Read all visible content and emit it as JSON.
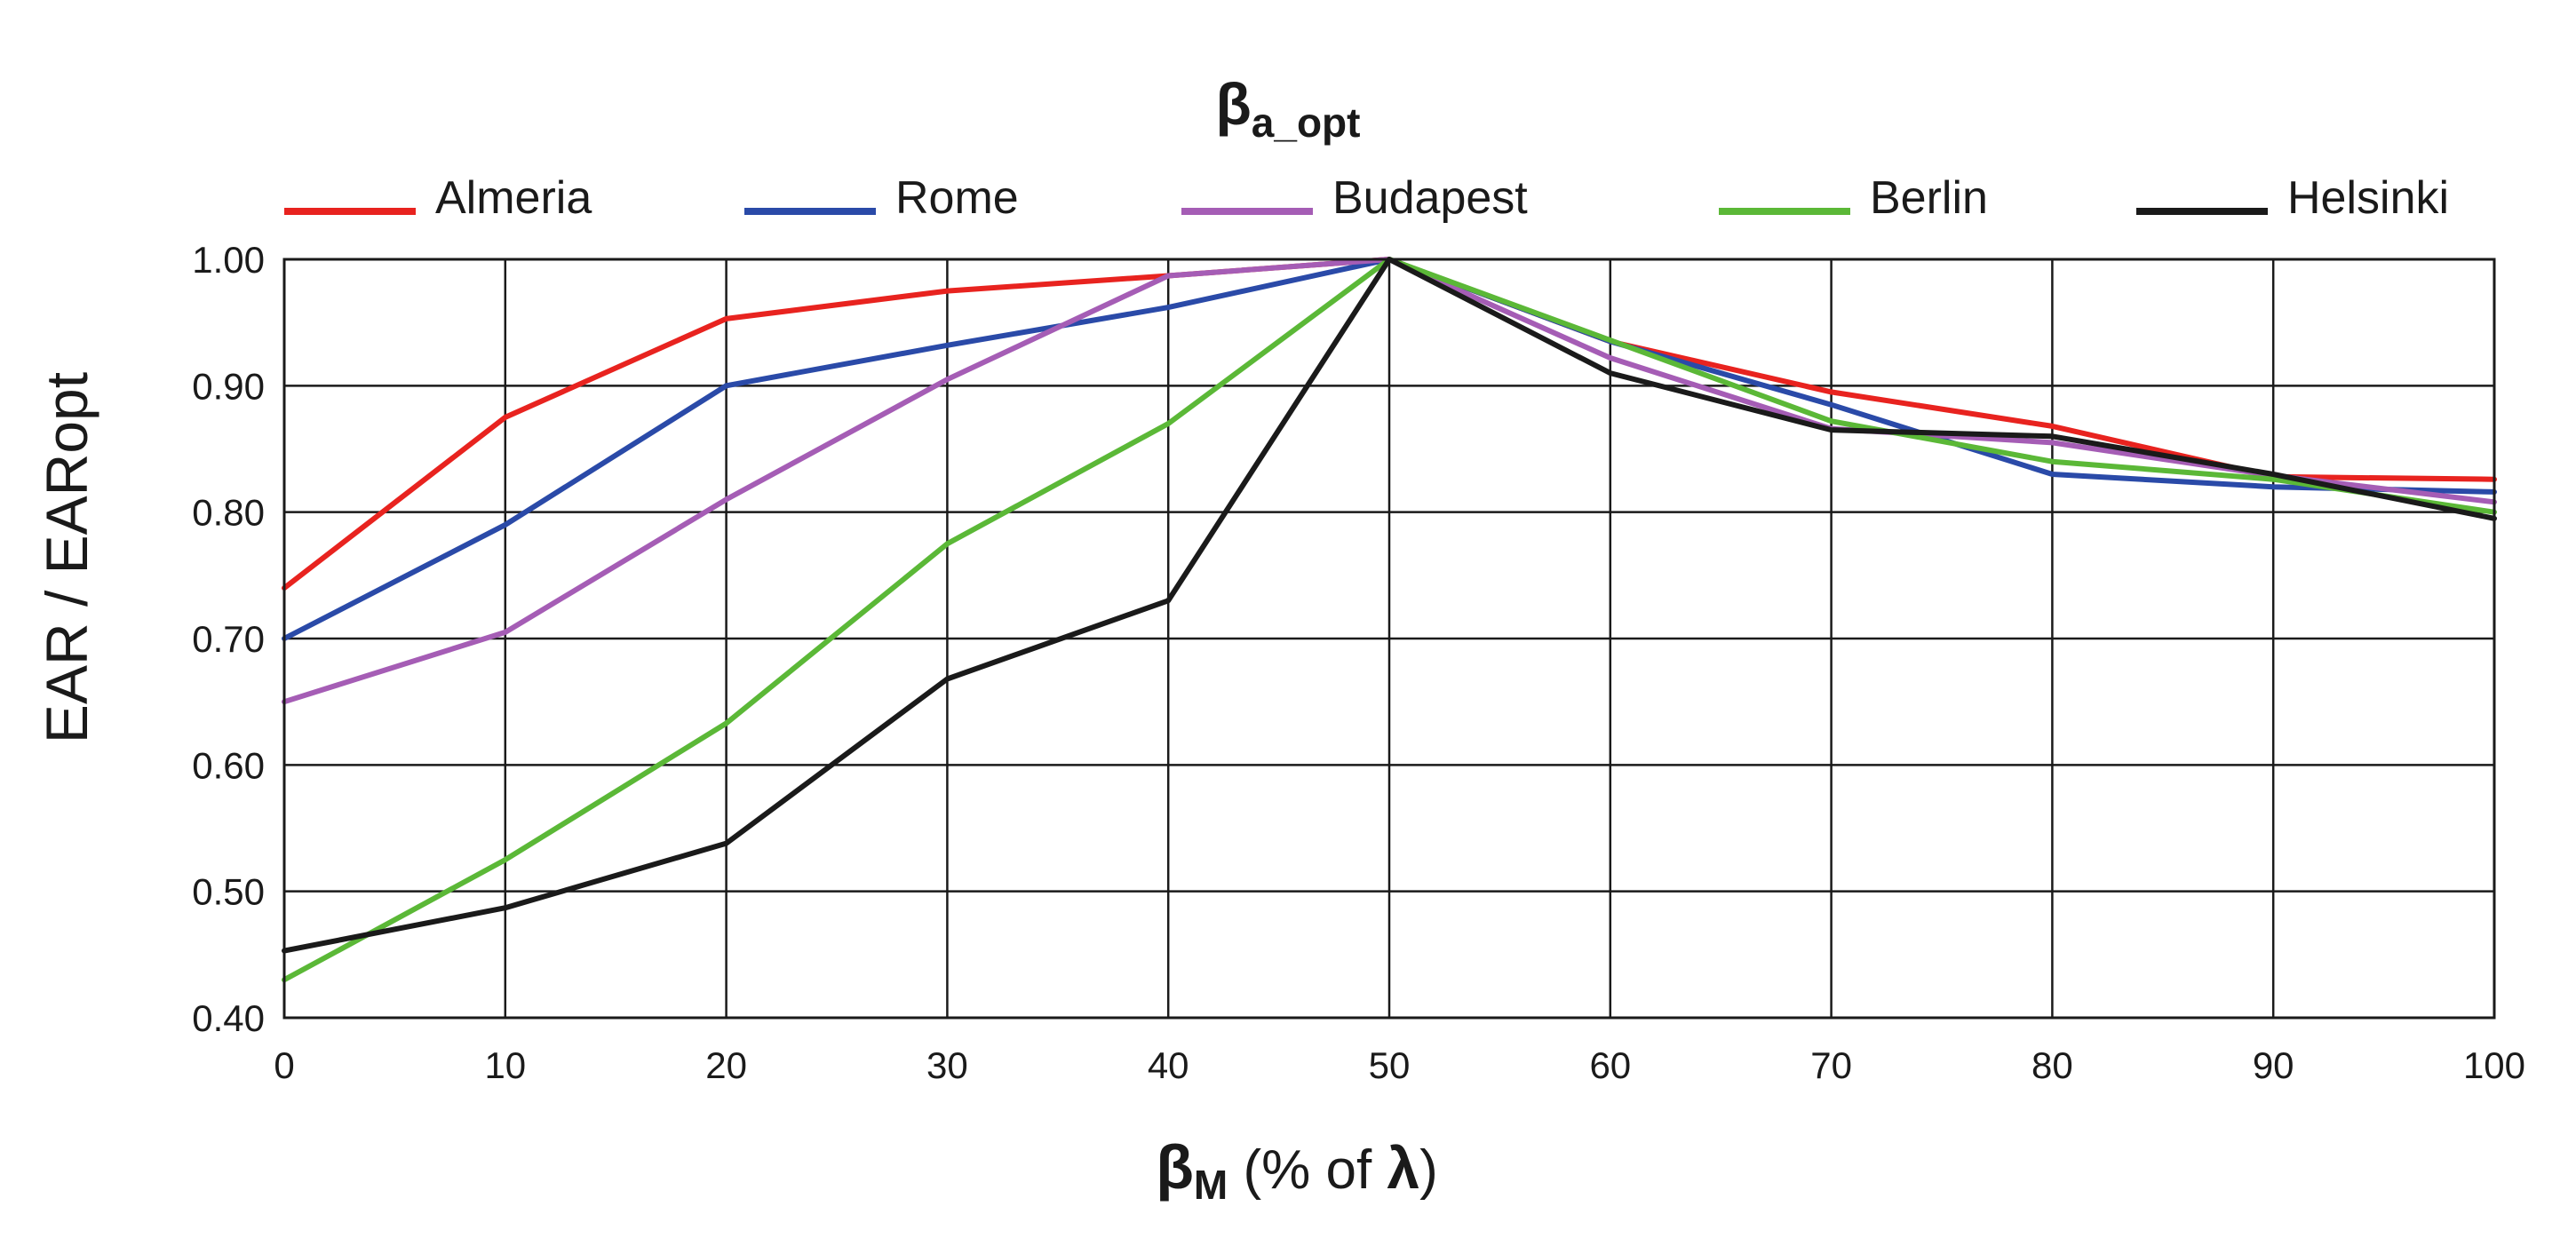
{
  "chart_data": {
    "type": "line",
    "title": {
      "main": "β",
      "sub": "a_opt"
    },
    "xlabel": {
      "main": "β",
      "sub": "M",
      "rest": " (% of ",
      "lambda": "λ",
      "close": ")"
    },
    "ylabel": "EAR / EARopt",
    "x": [
      0,
      10,
      20,
      30,
      40,
      50,
      60,
      70,
      80,
      90,
      100
    ],
    "x_ticks": [
      "0",
      "10",
      "20",
      "30",
      "40",
      "50",
      "60",
      "70",
      "80",
      "90",
      "100"
    ],
    "y_ticks": [
      "0.40",
      "0.50",
      "0.60",
      "0.70",
      "0.80",
      "0.90",
      "1.00"
    ],
    "xlim": [
      0,
      100
    ],
    "ylim": [
      0.4,
      1.0
    ],
    "grid": true,
    "legend_position": "top",
    "series": [
      {
        "name": "Almeria",
        "color": "#e8231f",
        "values": [
          0.74,
          0.875,
          0.953,
          0.975,
          0.987,
          1.0,
          0.935,
          0.895,
          0.868,
          0.828,
          0.826
        ]
      },
      {
        "name": "Rome",
        "color": "#2a4aa8",
        "values": [
          0.7,
          0.79,
          0.9,
          0.932,
          0.962,
          1.0,
          0.935,
          0.885,
          0.83,
          0.82,
          0.816
        ]
      },
      {
        "name": "Budapest",
        "color": "#a55db5",
        "values": [
          0.65,
          0.705,
          0.81,
          0.905,
          0.987,
          1.0,
          0.922,
          0.866,
          0.855,
          0.829,
          0.808
        ]
      },
      {
        "name": "Berlin",
        "color": "#5bb837",
        "values": [
          0.43,
          0.525,
          0.633,
          0.775,
          0.87,
          1.0,
          0.936,
          0.872,
          0.84,
          0.826,
          0.8
        ]
      },
      {
        "name": "Helsinki",
        "color": "#1a1a1a",
        "values": [
          0.453,
          0.487,
          0.538,
          0.668,
          0.73,
          1.0,
          0.91,
          0.865,
          0.86,
          0.83,
          0.795
        ]
      }
    ]
  }
}
